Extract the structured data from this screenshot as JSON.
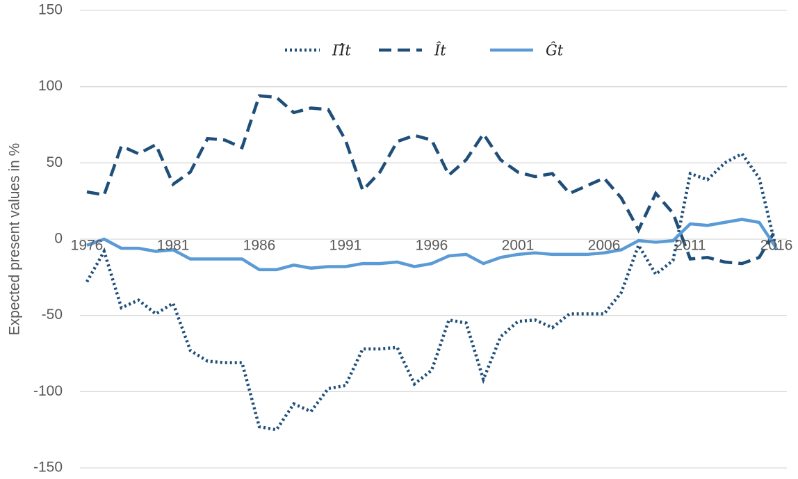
{
  "chart_data": {
    "type": "line",
    "y_label": "Expected present values in %",
    "x": [
      1976,
      1977,
      1978,
      1979,
      1980,
      1981,
      1982,
      1983,
      1984,
      1985,
      1986,
      1987,
      1988,
      1989,
      1990,
      1991,
      1992,
      1993,
      1994,
      1995,
      1996,
      1997,
      1998,
      1999,
      2000,
      2001,
      2002,
      2003,
      2004,
      2005,
      2006,
      2007,
      2008,
      2009,
      2010,
      2011,
      2012,
      2013,
      2014,
      2015,
      2016
    ],
    "xlim": [
      1976,
      2016
    ],
    "xticks": [
      1976,
      1981,
      1986,
      1991,
      1996,
      2001,
      2006,
      2011,
      2016
    ],
    "ylim": [
      -150,
      150
    ],
    "yticks": [
      -150,
      -100,
      -50,
      0,
      50,
      100,
      150
    ],
    "grid": true,
    "legend": "top",
    "series": [
      {
        "name": "Π̂t",
        "color": "#1f4e79",
        "style": "dotted",
        "values": [
          -28,
          -8,
          -45,
          -40,
          -49,
          -42,
          -73,
          -80,
          -81,
          -81,
          -123,
          -125,
          -108,
          -113,
          -98,
          -96,
          -72,
          -72,
          -71,
          -95,
          -86,
          -53,
          -55,
          -92,
          -64,
          -54,
          -53,
          -58,
          -49,
          -49,
          -49,
          -35,
          -4,
          -23,
          -14,
          43,
          39,
          50,
          56,
          40,
          -7
        ]
      },
      {
        "name": "Ît",
        "color": "#1f4e79",
        "style": "dashed",
        "values": [
          31,
          29,
          61,
          56,
          62,
          36,
          44,
          66,
          65,
          60,
          94,
          93,
          83,
          86,
          85,
          65,
          32,
          44,
          64,
          68,
          65,
          42,
          52,
          69,
          52,
          44,
          41,
          43,
          30,
          35,
          40,
          27,
          6,
          30,
          17,
          -13,
          -12,
          -15,
          -16,
          -12,
          7
        ]
      },
      {
        "name": "Ĝt",
        "color": "#5b9bd5",
        "style": "solid",
        "values": [
          -4,
          0,
          -6,
          -6,
          -8,
          -7,
          -13,
          -13,
          -13,
          -13,
          -20,
          -20,
          -17,
          -19,
          -18,
          -18,
          -16,
          -16,
          -15,
          -18,
          -16,
          -11,
          -10,
          -16,
          -12,
          -10,
          -9,
          -10,
          -10,
          -10,
          -9,
          -7,
          -1,
          -2,
          -1,
          10,
          9,
          11,
          13,
          11,
          -6
        ]
      }
    ]
  }
}
